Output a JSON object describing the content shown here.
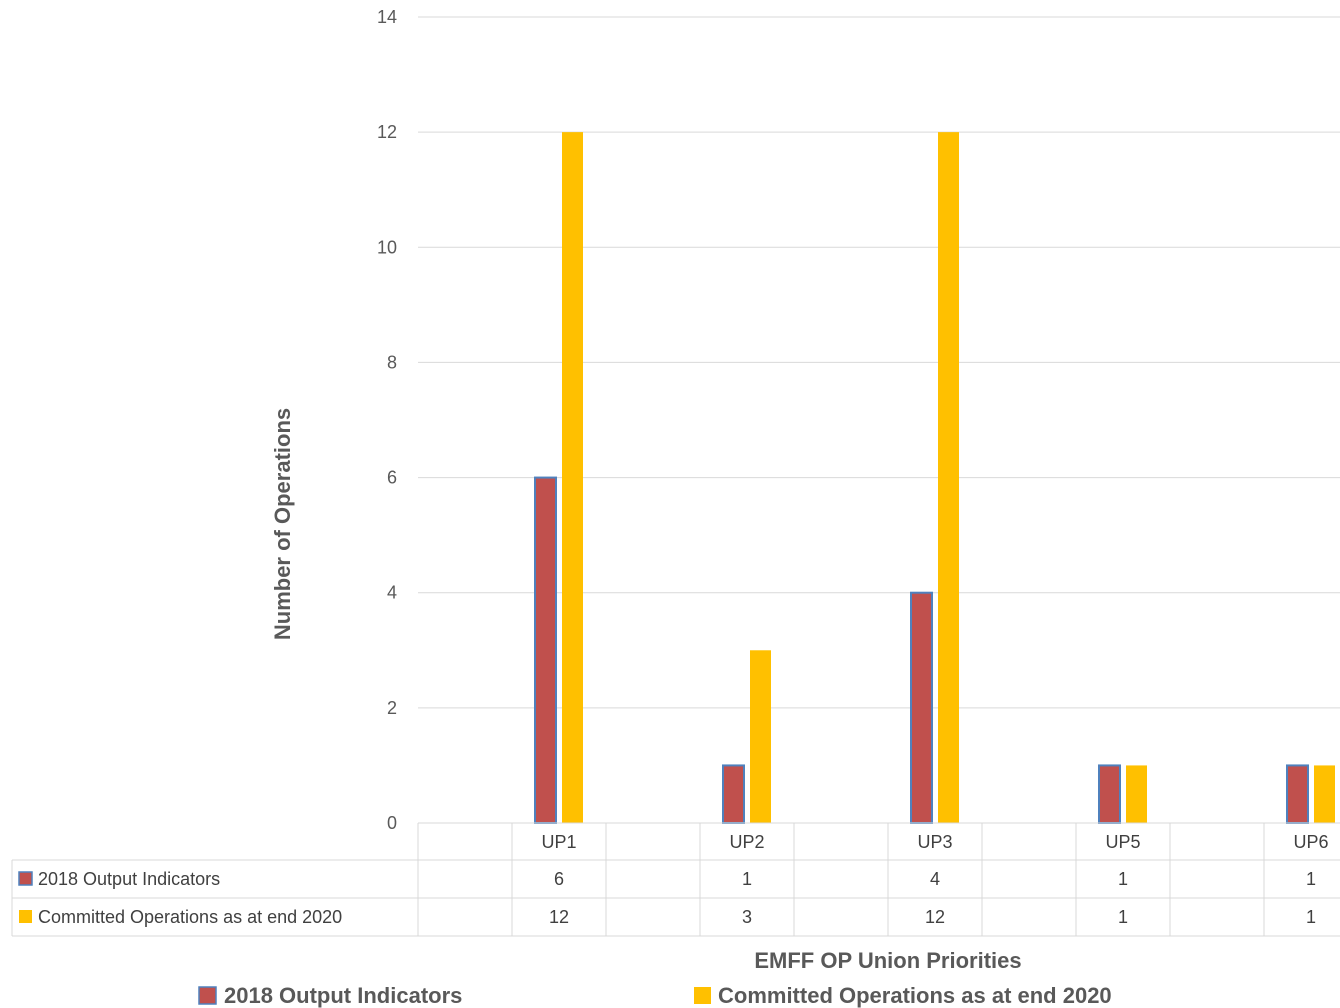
{
  "chart_data": {
    "type": "bar",
    "categories": [
      "UP1",
      "UP2",
      "UP3",
      "UP5",
      "UP6"
    ],
    "series": [
      {
        "name": "2018 Output Indicators",
        "values": [
          6,
          1,
          4,
          1,
          1
        ],
        "color": "#C0504D",
        "border": "#4F81BD"
      },
      {
        "name": "Committed Operations as at end 2020",
        "values": [
          12,
          3,
          12,
          1,
          1
        ],
        "color": "#FFC000"
      }
    ],
    "title": "",
    "xlabel": "EMFF OP Union Priorities",
    "ylabel": "Number of Operations",
    "ylim": [
      0,
      14
    ],
    "yticks": [
      0,
      2,
      4,
      6,
      8,
      10,
      12,
      14
    ],
    "grid": true,
    "legend": "bottom",
    "data_table": true
  }
}
